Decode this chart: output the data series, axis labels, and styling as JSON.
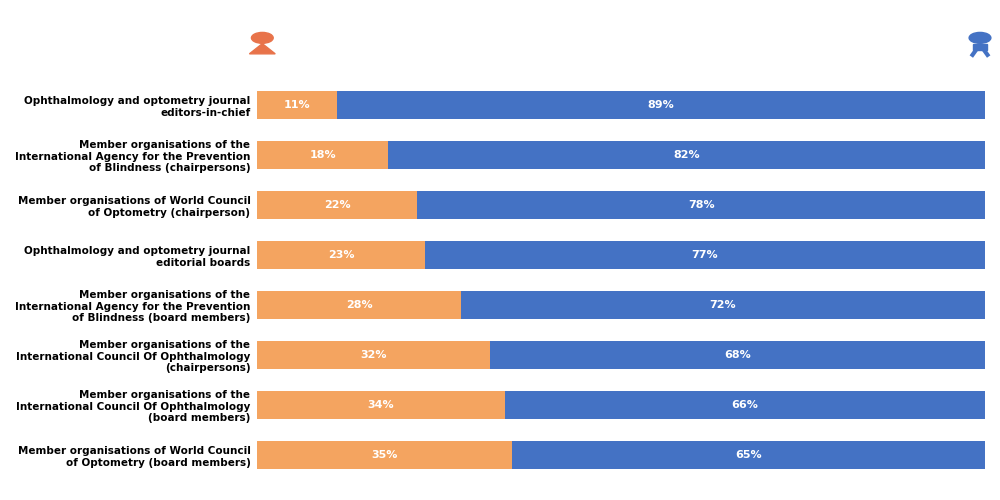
{
  "categories": [
    "Ophthalmology and optometry journal\neditors-in-chief",
    "Member organisations of the\nInternational Agency for the Prevention\nof Blindness (chairpersons)",
    "Member organisations of World Council\nof Optometry (chairperson)",
    "Ophthalmology and optometry journal\neditorial boards",
    "Member organisations of the\nInternational Agency for the Prevention\nof Blindness (board members)",
    "Member organisations of the\nInternational Council Of Ophthalmology\n(chairpersons)",
    "Member organisations of the\nInternational Council Of Ophthalmology\n(board members)",
    "Member organisations of World Council\nof Optometry (board members)"
  ],
  "female_pct": [
    11,
    18,
    22,
    23,
    28,
    32,
    34,
    35
  ],
  "male_pct": [
    89,
    82,
    78,
    77,
    72,
    68,
    66,
    65
  ],
  "female_color": "#F4A460",
  "male_color": "#4472C4",
  "female_label_color": "#FFFFFF",
  "male_label_color": "#FFFFFF",
  "background_color": "#FFFFFF",
  "bar_height": 0.55,
  "female_icon_color": "#E8734A",
  "male_icon_color": "#4472C4",
  "label_fontsize": 8,
  "category_fontsize": 7.5
}
